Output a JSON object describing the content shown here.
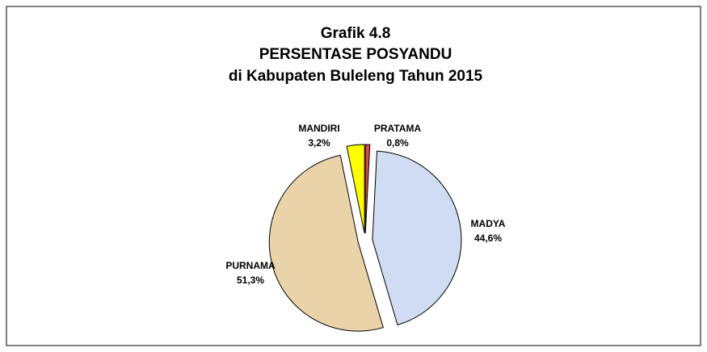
{
  "chart_data": {
    "type": "pie",
    "title": [
      "Grafik 4.8",
      "PERSENTASE POSYANDU",
      "di Kabupaten Buleleng Tahun 2015"
    ],
    "categories": [
      "PRATAMA",
      "MADYA",
      "PURNAMA",
      "MANDIRI"
    ],
    "values": [
      0.8,
      44.6,
      51.3,
      3.2
    ],
    "value_labels": [
      "0,8%",
      "44,6%",
      "51,3%",
      "3,2%"
    ],
    "colors": [
      "#e04848",
      "#cfdcf2",
      "#ead3a8",
      "#ffff00"
    ]
  }
}
